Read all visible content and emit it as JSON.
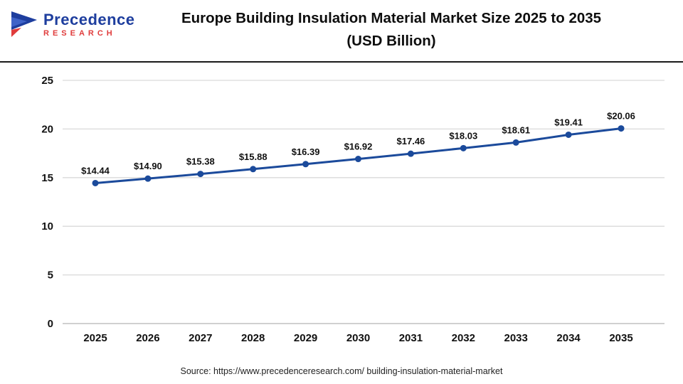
{
  "header": {
    "title_line1": "Europe Building Insulation Material Market Size 2025 to 2035",
    "title_line2": "(USD Billion)",
    "logo": {
      "line1": "Precedence",
      "line2": "RESEARCH"
    }
  },
  "chart_data": {
    "type": "line",
    "title": "Europe Building Insulation Material Market Size 2025 to 2035 (USD Billion)",
    "categories": [
      "2025",
      "2026",
      "2027",
      "2028",
      "2029",
      "2030",
      "2031",
      "2032",
      "2033",
      "2034",
      "2035"
    ],
    "values": [
      14.44,
      14.9,
      15.38,
      15.88,
      16.39,
      16.92,
      17.46,
      18.03,
      18.61,
      19.41,
      20.06
    ],
    "point_labels": [
      "$14.44",
      "$14.90",
      "$15.38",
      "$15.88",
      "$16.39",
      "$16.92",
      "$17.46",
      "$18.03",
      "$18.61",
      "$19.41",
      "$20.06"
    ],
    "xlabel": "",
    "ylabel": "",
    "ylim": [
      0,
      25
    ],
    "yticks": [
      0,
      5,
      10,
      15,
      20,
      25
    ],
    "grid": "horizontal",
    "legend": "none",
    "line_color": "#1b4a9b",
    "marker_color": "#1b4a9b",
    "grid_color": "#d9d9d9",
    "axis_zero_color": "#b3b3b3"
  },
  "footer": {
    "source": "Source: https://www.precedenceresearch.com/ building-insulation-material-market"
  }
}
